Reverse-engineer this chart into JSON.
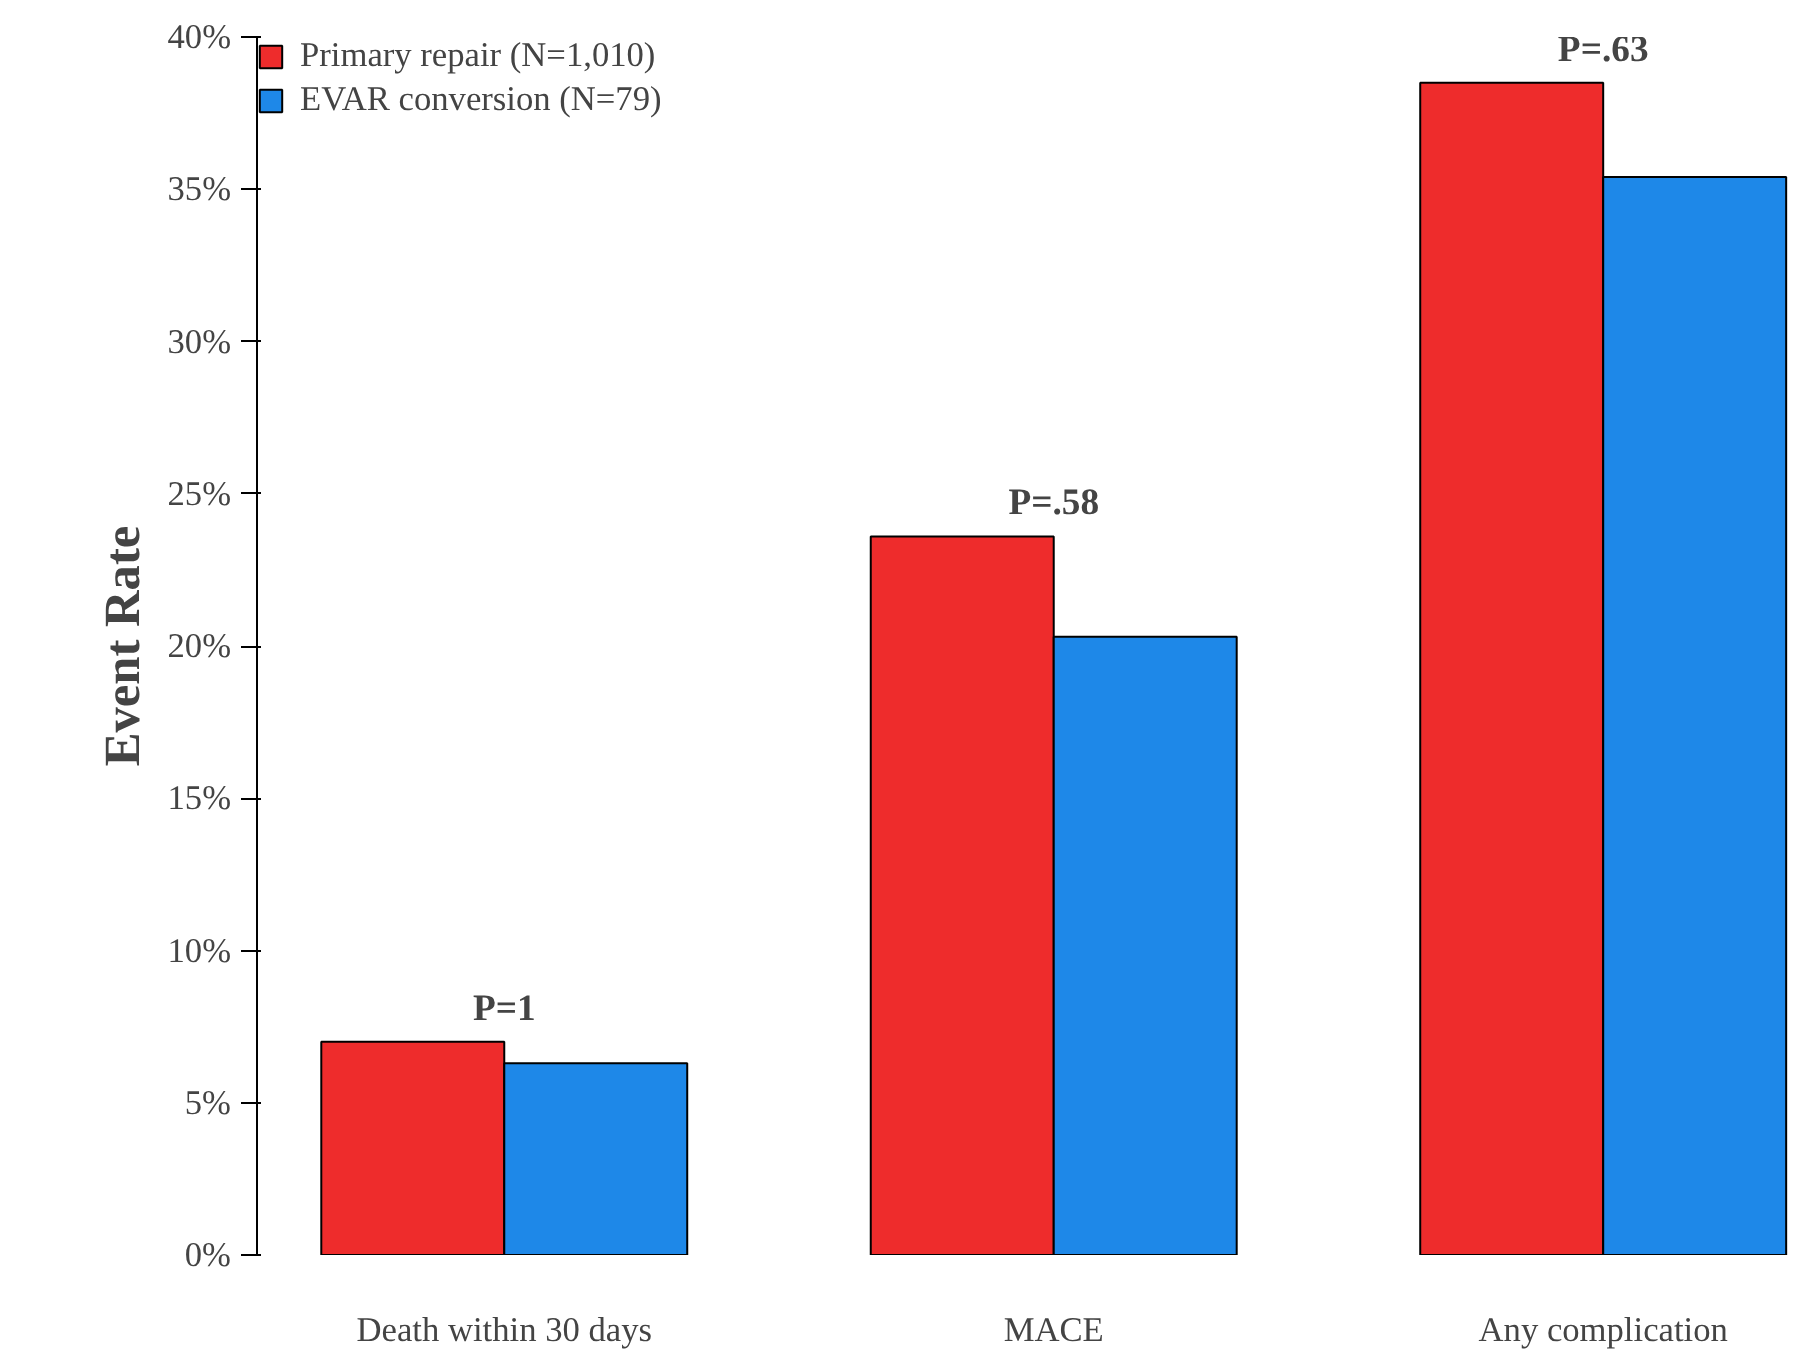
{
  "chart_data": {
    "type": "bar",
    "ylabel": "Event Rate",
    "categories": [
      "Death within 30 days",
      "MACE",
      "Any complication"
    ],
    "series": [
      {
        "name": "Primary repair (N=1,010)",
        "color": "#ee2c2c",
        "values": [
          7.0,
          23.6,
          38.5
        ]
      },
      {
        "name": "EVAR conversion (N=79)",
        "color": "#1e88e8",
        "values": [
          6.3,
          20.3,
          35.4
        ]
      }
    ],
    "ylim": [
      0,
      40
    ],
    "yticks": [
      {
        "value": 0,
        "label": "0%"
      },
      {
        "value": 5,
        "label": "5%"
      },
      {
        "value": 10,
        "label": "10%"
      },
      {
        "value": 15,
        "label": "15%"
      },
      {
        "value": 20,
        "label": "20%"
      },
      {
        "value": 25,
        "label": "25%"
      },
      {
        "value": 30,
        "label": "30%"
      },
      {
        "value": 35,
        "label": "35%"
      },
      {
        "value": 40,
        "label": "40%"
      }
    ],
    "annotations": [
      {
        "text": "P=1",
        "x": "Death within 30 days",
        "y": 7.0
      },
      {
        "text": "P=.58",
        "x": "MACE",
        "y": 23.6
      },
      {
        "text": "P=.63",
        "x": "Any complication",
        "y": 38.5
      }
    ],
    "legend": "top left",
    "grid": false
  }
}
